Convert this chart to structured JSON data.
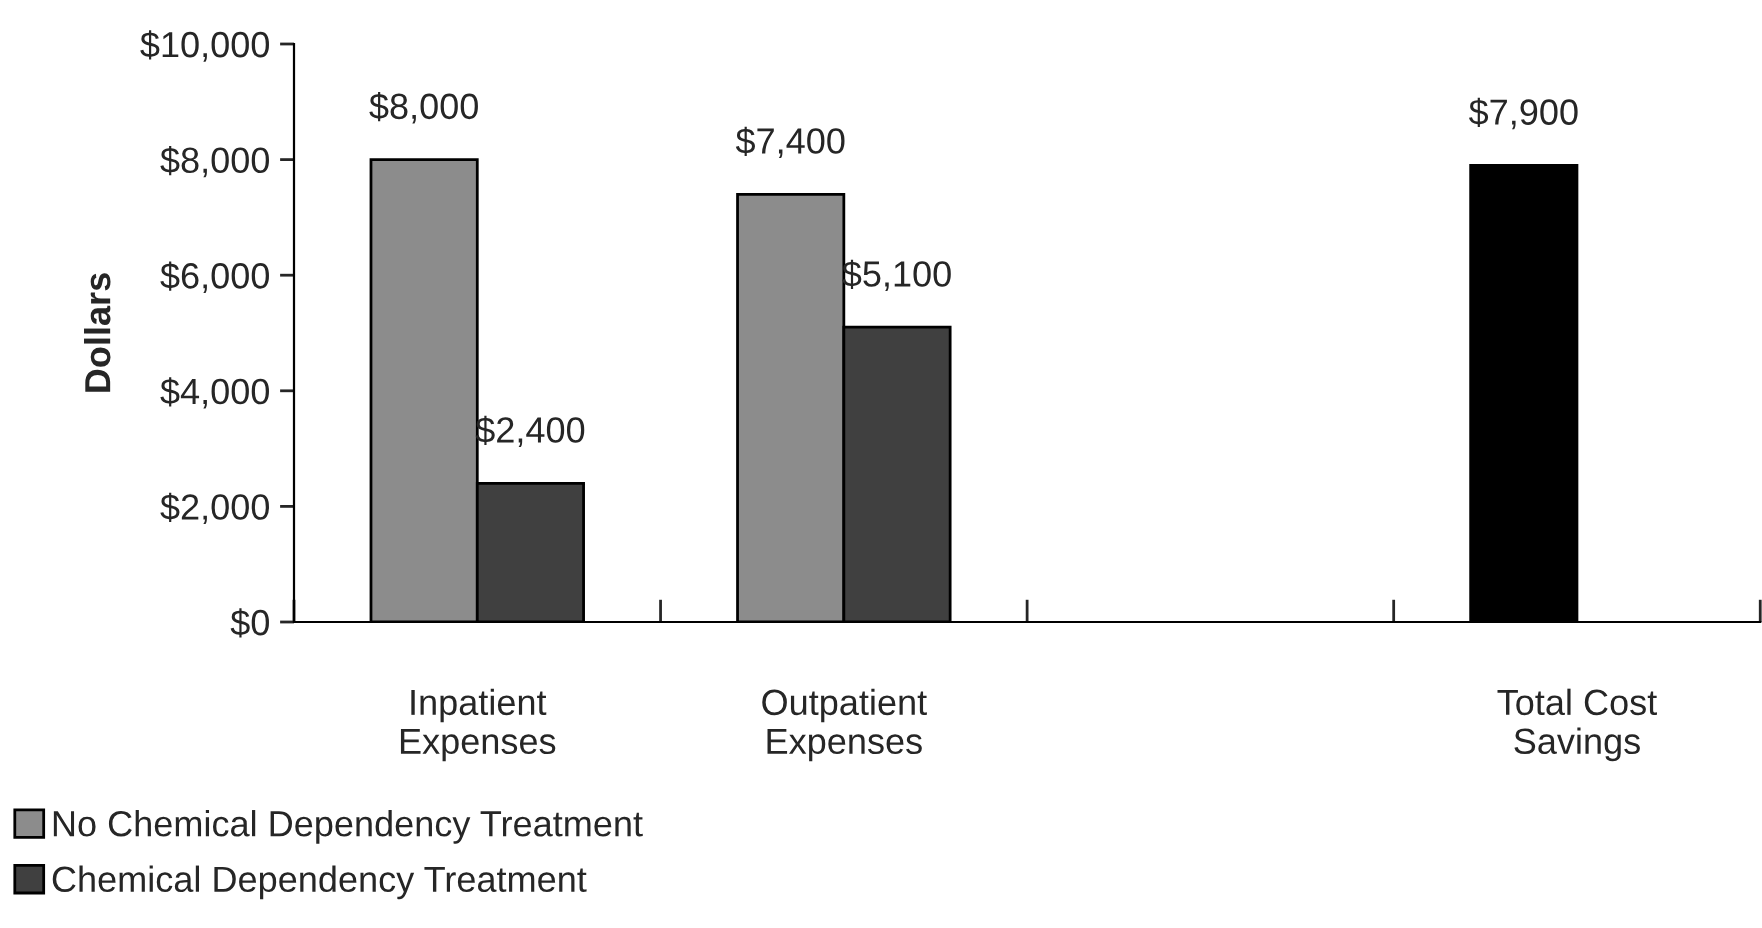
{
  "chart_data": {
    "type": "bar",
    "ylabel": "Dollars",
    "categories": [
      "Inpatient\nExpenses",
      "Outpatient\nExpenses",
      null,
      "Total Cost\nSavings"
    ],
    "series": [
      {
        "name": "No Chemical Dependency Treatment",
        "color": "#8c8c8c",
        "colors": [
          "#8c8c8c",
          "#8c8c8c",
          "#8c8c8c",
          "#000000"
        ],
        "values": [
          8000,
          7400,
          null,
          7900
        ],
        "value_labels": [
          "$8,000",
          "$7,400",
          null,
          "$7,900"
        ]
      },
      {
        "name": "Chemical Dependency Treatment",
        "color": "#404040",
        "values": [
          2400,
          5100,
          null,
          null
        ],
        "value_labels": [
          "$2,400",
          "$5,100",
          null,
          null
        ]
      }
    ],
    "ylim": [
      0,
      10000
    ],
    "yticks": [
      {
        "value": 0,
        "label": "$0"
      },
      {
        "value": 2000,
        "label": "$2,000"
      },
      {
        "value": 4000,
        "label": "$4,000"
      },
      {
        "value": 6000,
        "label": "$6,000"
      },
      {
        "value": 8000,
        "label": "$8,000"
      },
      {
        "value": 10000,
        "label": "$10,000"
      }
    ],
    "grid": false,
    "legend": "bottom left"
  }
}
